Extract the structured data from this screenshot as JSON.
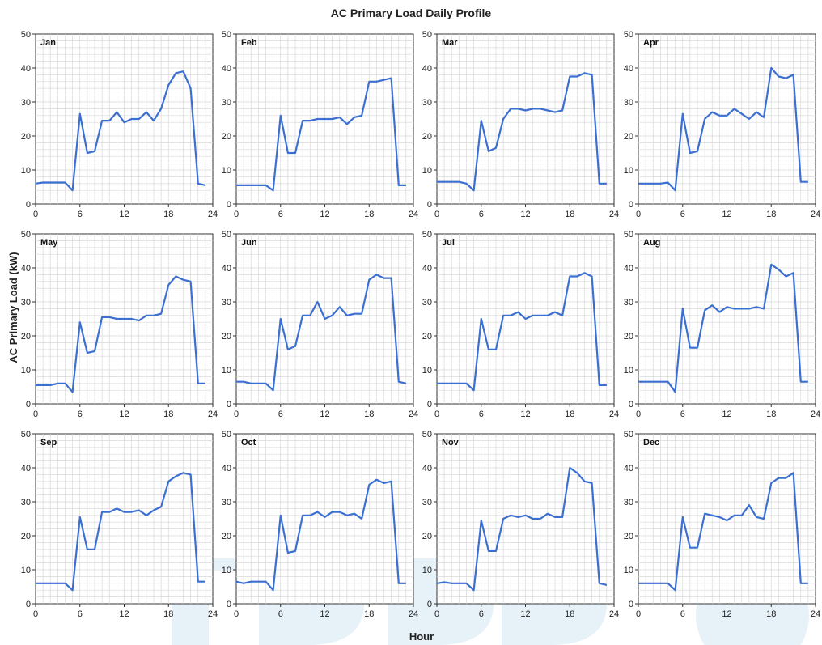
{
  "chart_data": {
    "type": "line",
    "title": "AC Primary Load Daily Profile",
    "xlabel": "Hour",
    "ylabel": "AC Primary Load (kW)",
    "xlim": [
      0,
      24
    ],
    "ylim": [
      0,
      50
    ],
    "xticks": [
      0,
      6,
      12,
      18,
      24
    ],
    "yticks": [
      0,
      10,
      20,
      30,
      40,
      50
    ],
    "grid": true,
    "x": [
      0,
      1,
      2,
      3,
      4,
      5,
      6,
      7,
      8,
      9,
      10,
      11,
      12,
      13,
      14,
      15,
      16,
      17,
      18,
      19,
      20,
      21,
      22,
      23
    ],
    "panels": [
      {
        "label": "Jan",
        "values": [
          6,
          6.3,
          6.3,
          6.3,
          6.3,
          4,
          26.5,
          15,
          15.5,
          24.5,
          24.5,
          27,
          24,
          25,
          25,
          27,
          24.5,
          28,
          35,
          38.5,
          39,
          34,
          6,
          5.5
        ]
      },
      {
        "label": "Feb",
        "values": [
          5.5,
          5.5,
          5.5,
          5.5,
          5.5,
          4,
          26,
          15,
          15,
          24.5,
          24.5,
          25,
          25,
          25,
          25.5,
          23.5,
          25.5,
          26,
          36,
          36,
          36.5,
          37,
          5.5,
          5.5
        ]
      },
      {
        "label": "Mar",
        "values": [
          6.5,
          6.5,
          6.5,
          6.5,
          6,
          4,
          24.5,
          15.5,
          16.5,
          25,
          28,
          28,
          27.5,
          28,
          28,
          27.5,
          27,
          27.5,
          37.5,
          37.5,
          38.5,
          38,
          6,
          6
        ]
      },
      {
        "label": "Apr",
        "values": [
          6,
          6,
          6,
          6,
          6.3,
          4,
          26.5,
          15,
          15.5,
          25,
          27,
          26,
          26,
          28,
          26.5,
          25,
          27,
          25.5,
          40,
          37.5,
          37,
          38,
          6.5,
          6.5
        ]
      },
      {
        "label": "May",
        "values": [
          5.5,
          5.5,
          5.5,
          6,
          6,
          3.5,
          24,
          15,
          15.5,
          25.5,
          25.5,
          25,
          25,
          25,
          24.5,
          26,
          26,
          26.5,
          35,
          37.5,
          36.5,
          36,
          6,
          6
        ]
      },
      {
        "label": "Jun",
        "values": [
          6.5,
          6.5,
          6,
          6,
          6,
          4,
          25,
          16,
          17,
          26,
          26,
          30,
          25,
          26,
          28.5,
          26,
          26.5,
          26.5,
          36.5,
          38,
          37,
          37,
          6.5,
          6
        ]
      },
      {
        "label": "Jul",
        "values": [
          6,
          6,
          6,
          6,
          6,
          4,
          25,
          16,
          16,
          26,
          26,
          27,
          25,
          26,
          26,
          26,
          27,
          26,
          37.5,
          37.5,
          38.5,
          37.5,
          5.5,
          5.5
        ]
      },
      {
        "label": "Aug",
        "values": [
          6.5,
          6.5,
          6.5,
          6.5,
          6.5,
          3.5,
          28,
          16.5,
          16.5,
          27.5,
          29,
          27,
          28.5,
          28,
          28,
          28,
          28.5,
          28,
          41,
          39.5,
          37.5,
          38.5,
          6.5,
          6.5
        ]
      },
      {
        "label": "Sep",
        "values": [
          6,
          6,
          6,
          6,
          6,
          4,
          25.5,
          16,
          16,
          27,
          27,
          28,
          27,
          27,
          27.5,
          26,
          27.5,
          28.5,
          36,
          37.5,
          38.5,
          38,
          6.5,
          6.5
        ]
      },
      {
        "label": "Oct",
        "values": [
          6.5,
          6,
          6.5,
          6.5,
          6.5,
          4,
          26,
          15,
          15.5,
          26,
          26,
          27,
          25.5,
          27,
          27,
          26,
          26.5,
          25,
          35,
          36.5,
          35.5,
          36,
          6,
          6
        ]
      },
      {
        "label": "Nov",
        "values": [
          6,
          6.3,
          6,
          6,
          6,
          4,
          24.5,
          15.5,
          15.5,
          25,
          26,
          25.5,
          26,
          25,
          25,
          26.5,
          25.5,
          25.5,
          40,
          38.5,
          36,
          35.5,
          6,
          5.5
        ]
      },
      {
        "label": "Dec",
        "values": [
          6,
          6,
          6,
          6,
          6,
          4,
          25.5,
          16.5,
          16.5,
          26.5,
          26,
          25.5,
          24.5,
          26,
          26,
          29,
          25.5,
          25,
          35.5,
          37,
          37,
          38.5,
          6,
          6
        ]
      }
    ]
  }
}
